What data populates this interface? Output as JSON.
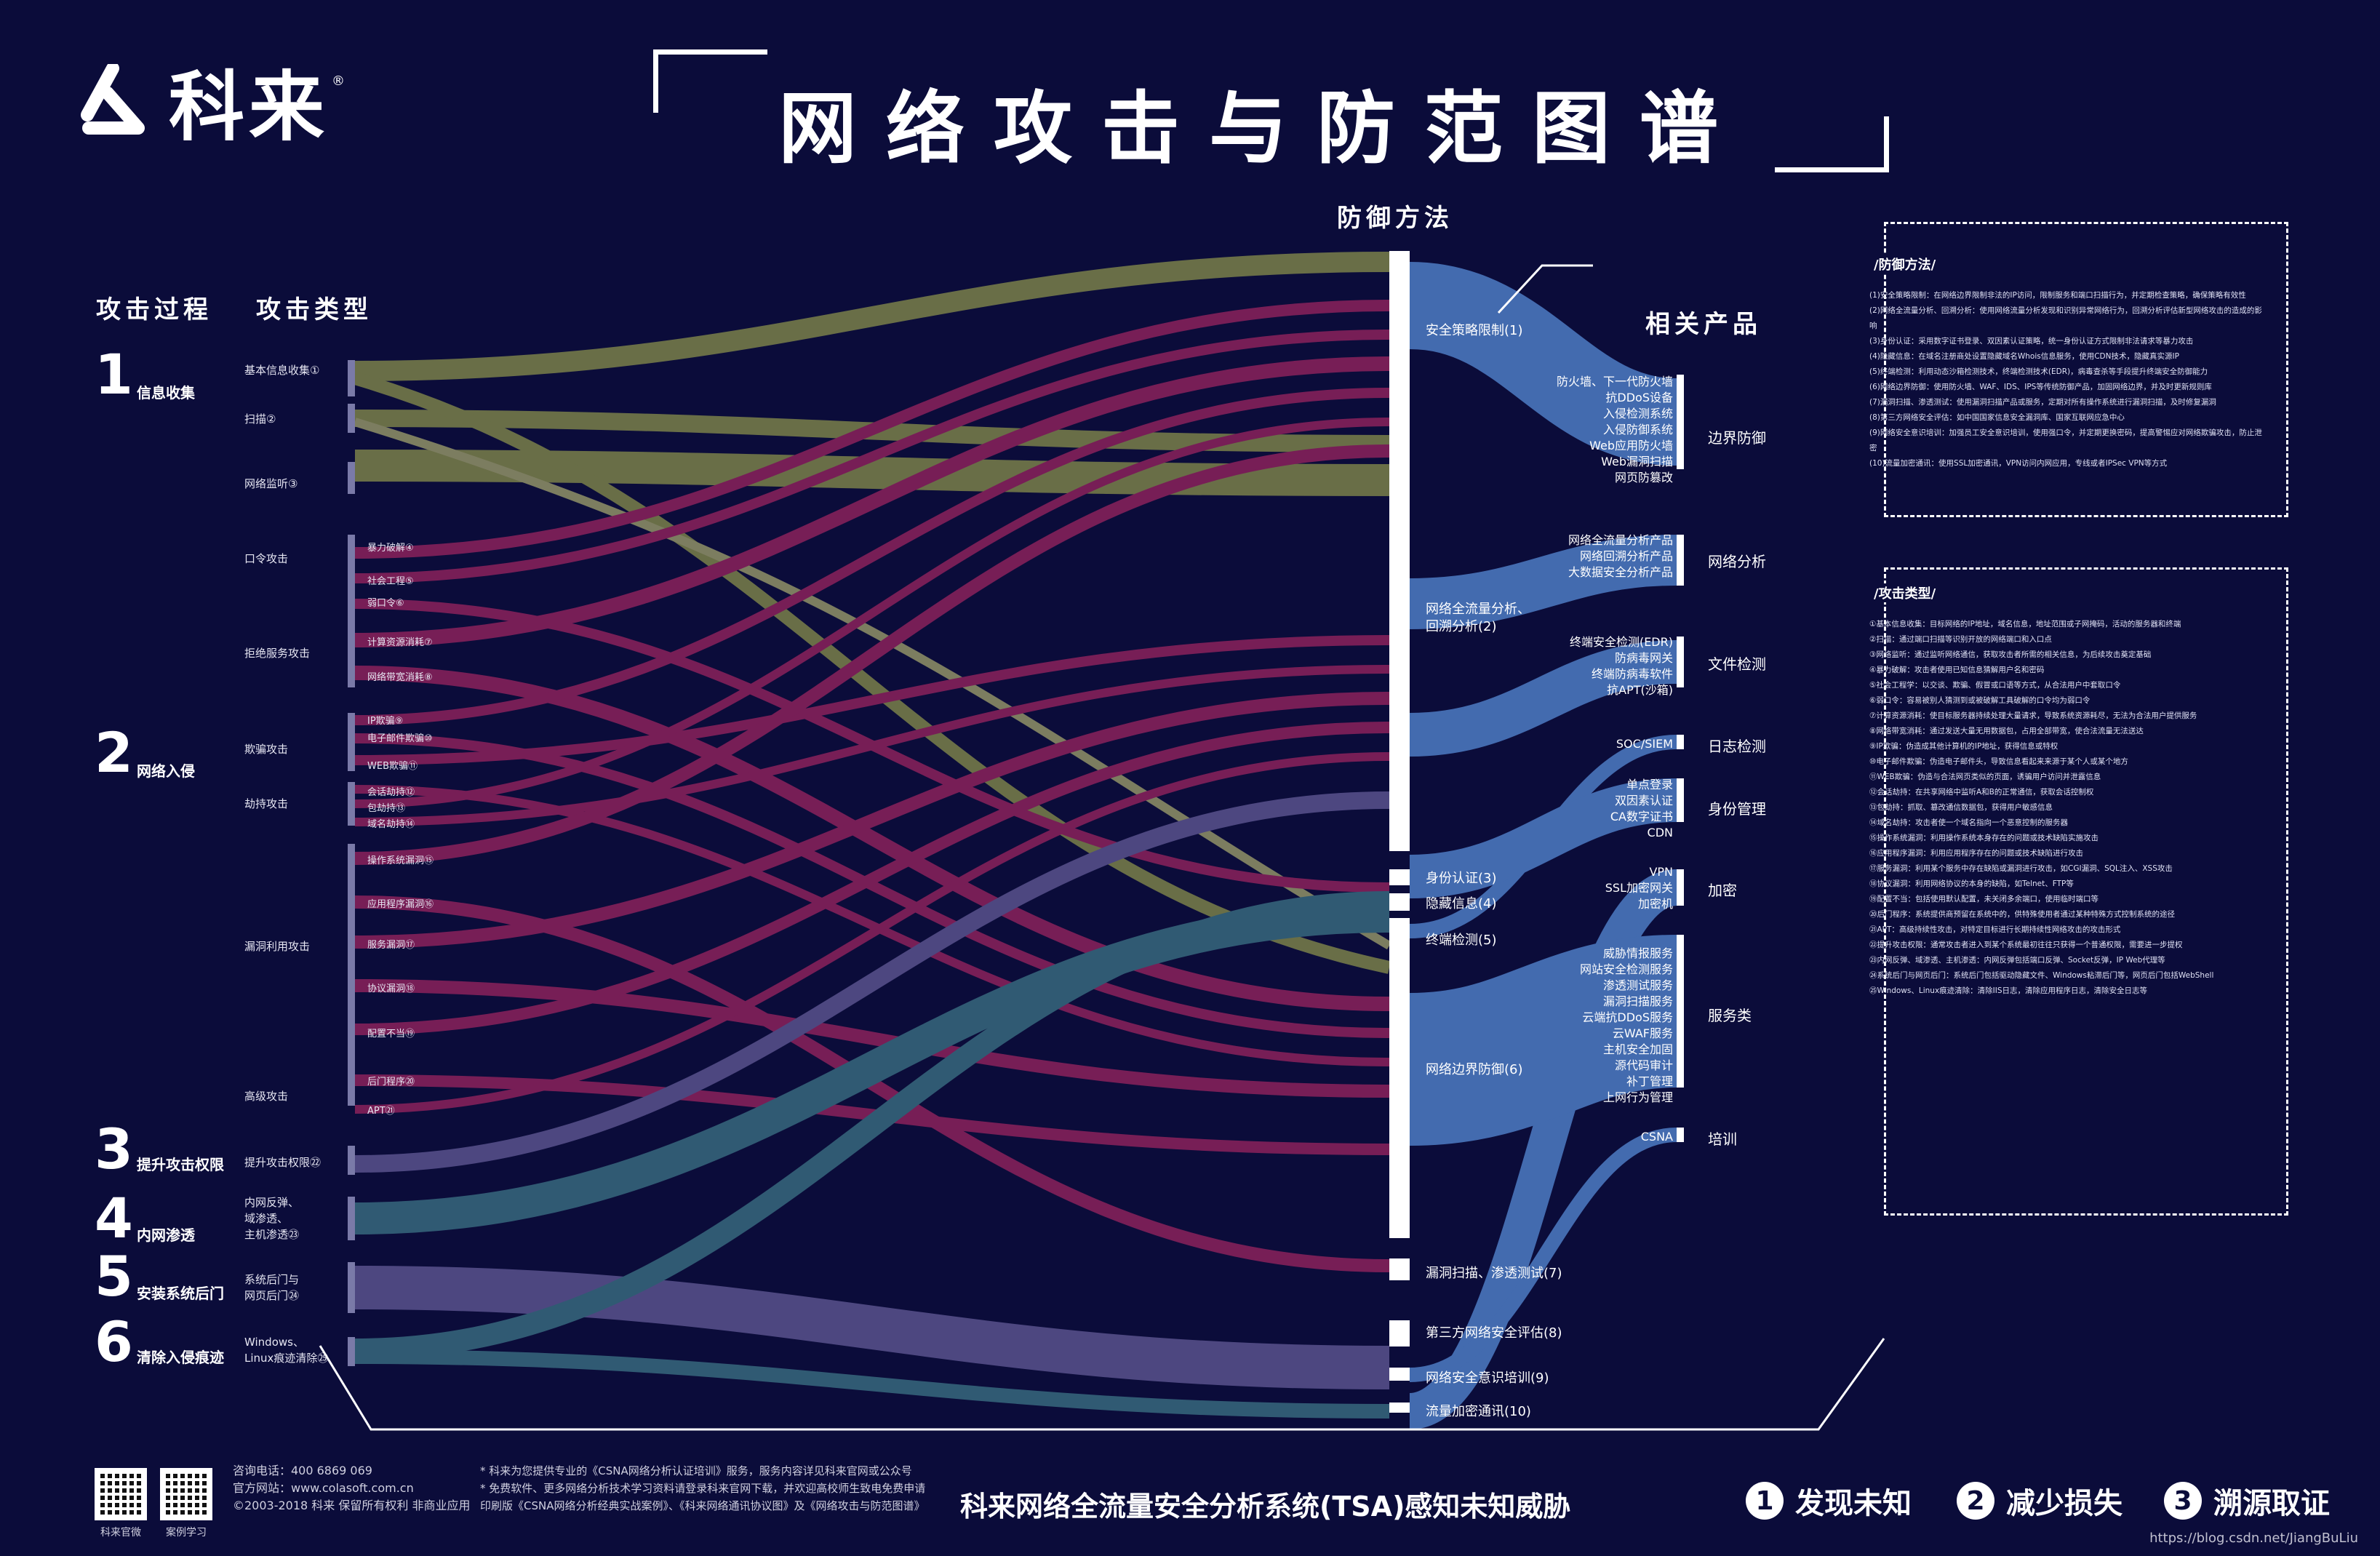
{
  "brand": {
    "name": "科来",
    "reg": "®"
  },
  "title": "网络攻击与防范图谱",
  "headers": {
    "process": "攻击过程",
    "types": "攻击类型",
    "defense": "防御方法",
    "products": "相关产品"
  },
  "stages": [
    {
      "num": "1",
      "name": "信息收集"
    },
    {
      "num": "2",
      "name": "网络入侵"
    },
    {
      "num": "3",
      "name": "提升攻击权限"
    },
    {
      "num": "4",
      "name": "内网渗透"
    },
    {
      "num": "5",
      "name": "安装系统后门"
    },
    {
      "num": "6",
      "name": "清除入侵痕迹"
    }
  ],
  "attack_types": [
    "基本信息收集①",
    "扫描②",
    "网络监听③",
    "口令攻击",
    "拒绝服务攻击",
    "欺骗攻击",
    "劫持攻击",
    "漏洞利用攻击",
    "高级攻击",
    "提升攻击权限㉒",
    "内网反弹、\n域渗透、\n主机渗透㉓",
    "系统后门与\n网页后门㉔",
    "Windows、\nLinux痕迹清除㉕"
  ],
  "sub_types": [
    "暴力破解④",
    "社会工程⑤",
    "弱口令⑥",
    "计算资源消耗⑦",
    "网络带宽消耗⑧",
    "IP欺骗⑨",
    "电子邮件欺骗⑩",
    "WEB欺骗⑪",
    "会话劫持⑫",
    "包劫持⑬",
    "域名劫持⑭",
    "操作系统漏洞⑮",
    "应用程序漏洞⑯",
    "服务漏洞⑰",
    "协议漏洞⑱",
    "配置不当⑲",
    "后门程序⑳",
    "APT㉑"
  ],
  "defenses": [
    "安全策略限制(1)",
    "网络全流量分析、\n回溯分析(2)",
    "身份认证(3)",
    "隐藏信息(4)",
    "终端检测(5)",
    "网络边界防御(6)",
    "漏洞扫描、渗透测试(7)",
    "第三方网络安全评估(8)",
    "网络安全意识培训(9)",
    "流量加密通讯(10)"
  ],
  "product_groups": [
    {
      "items": "防火墙、下一代防火墙\n抗DDoS设备\n入侵检测系统\n入侵防御系统\nWeb应用防火墙\nWeb漏洞扫描\n网页防篡改",
      "category": "边界防御"
    },
    {
      "items": "网络全流量分析产品\n网络回溯分析产品\n大数据安全分析产品",
      "category": "网络分析"
    },
    {
      "items": "终端安全检测(EDR)\n防病毒网关\n终端防病毒软件\n抗APT(沙箱)",
      "category": "文件检测"
    },
    {
      "items": "SOC/SIEM",
      "category": "日志检测"
    },
    {
      "items": "单点登录\n双因素认证\nCA数字证书\nCDN",
      "category": "身份管理"
    },
    {
      "items": "VPN\nSSL加密网关\n加密机",
      "category": "加密"
    },
    {
      "items": "威胁情报服务\n网站安全检测服务\n渗透测试服务\n漏洞扫描服务\n云端抗DDoS服务\n云WAF服务\n主机安全加固\n源代码审计\n补丁管理\n上网行为管理",
      "category": "服务类"
    },
    {
      "items": "CSNA",
      "category": "培训"
    }
  ],
  "defense_box": {
    "title": "/防御方法/",
    "lines": [
      "(1)安全策略限制：在网络边界限制非法的IP访问，限制服务和端口扫描行为，并定期检查策略，确保策略有效性",
      "(2)网络全流量分析、回溯分析：使用网络流量分析发现和识别异常网络行为，回溯分析评估新型网络攻击的造成的影响",
      "(3)身份认证：采用数字证书登录、双因素认证策略，统一身份认证方式限制非法请求等暴力攻击",
      "(4)隐藏信息：在域名注册商处设置隐藏域名Whois信息服务，使用CDN技术，隐藏真实源IP",
      "(5)终端检测：利用动态沙箱检测技术，终端检测技术(EDR)，病毒查杀等手段提升终端安全防御能力",
      "(6)网络边界防御：使用防火墙、WAF、IDS、IPS等传统防御产品，加固网络边界，并及时更新规则库",
      "(7)漏洞扫描、渗透测试：使用漏洞扫描产品或服务，定期对所有操作系统进行漏洞扫描，及时修复漏洞",
      "(8)第三方网络安全评估：如中国国家信息安全漏洞库、国家互联网应急中心",
      "(9)网络安全意识培训：加强员工安全意识培训，使用强口令，并定期更换密码，提高警惕应对网络欺骗攻击，防止泄密",
      "(10)流量加密通讯：使用SSL加密通讯，VPN访问内网应用，专线或者IPSec VPN等方式"
    ]
  },
  "attack_box": {
    "title": "/攻击类型/",
    "lines": [
      "①基本信息收集：目标网络的IP地址，域名信息，地址范围或子网掩码，活动的服务器和终端",
      "②扫描：通过端口扫描等识别开放的网络端口和入口点",
      "③网络监听：通过监听网络通信，获取攻击者所需的相关信息，为后续攻击奠定基础",
      "④暴力破解：攻击者使用已知信息猜解用户名和密码",
      "⑤社会工程学：以交谈、欺骗、假冒或口语等方式，从合法用户中套取口令",
      "⑥弱口令：容易被别人猜测到或被破解工具破解的口令均为弱口令",
      "⑦计算资源消耗：使目标服务器持续处理大量请求，导致系统资源耗尽，无法为合法用户提供服务",
      "⑧网络带宽消耗：通过发送大量无用数据包，占用全部带宽，使合法流量无法送达",
      "⑨IP欺骗：伪造成其他计算机的IP地址，获得信息或特权",
      "⑩电子邮件欺骗：伪造电子邮件头，导致信息看起来来源于某个人或某个地方",
      "⑪WEB欺骗：伪造与合法网页类似的页面，诱骗用户访问并泄露信息",
      "⑫会话劫持：在共享网络中监听A和B的正常通信，获取会话控制权",
      "⑬包劫持：抓取、篡改通信数据包，获得用户敏感信息",
      "⑭域名劫持：攻击者使一个域名指向一个恶意控制的服务器",
      "⑮操作系统漏洞：利用操作系统本身存在的问题或技术缺陷实施攻击",
      "⑯应用程序漏洞：利用应用程序存在的问题或技术缺陷进行攻击",
      "⑰服务漏洞：利用某个服务中存在缺陷或漏洞进行攻击，如CGI漏洞、SQL注入、XSS攻击",
      "⑱协议漏洞：利用网络协议的本身的缺陷，如Telnet、FTP等",
      "⑲配置不当：包括使用默认配置，未关闭多余端口，使用临时端口等",
      "⑳后门程序：系统提供商预留在系统中的，供特殊使用者通过某种特殊方式控制系统的途径",
      "㉑APT：高级持续性攻击，对特定目标进行长期持续性网络攻击的攻击形式",
      "㉒提升攻击权限：通常攻击者进入到某个系统最初往往只获得一个普通权限，需要进一步提权",
      "㉓内网反弹、域渗透、主机渗透：内网反弹包括端口反弹、Socket反弹，IP Web代理等",
      "㉔系统后门与网页后门：系统后门包括驱动隐藏文件、Windows粘滞后门等，网页后门包括WebShell",
      "㉕Windows、Linux痕迹清除：清除IIS日志，清除应用程序日志，清除安全日志等"
    ]
  },
  "footer": {
    "phone": "咨询电话：400 6869 069",
    "site": "官方网站：www.colasoft.com.cn",
    "copyright": "©2003-2018 科来 保留所有权利 非商业应用",
    "qr1": "科来官微",
    "qr2": "案例学习",
    "note1": "* 科来为您提供专业的《CSNA网络分析认证培训》服务，服务内容详见科来官网或公众号",
    "note2": "* 免费软件、更多网络分析技术学习资料请登录科来官网下载，并欢迎高校师生致电免费申请印刷版《CSNA网络分析经典实战案例》、《科来网络通讯协议图》及《网络攻击与防范图谱》",
    "slogan": "科来网络全流量安全分析系统(TSA)感知未知威胁",
    "goals": [
      {
        "n": "1",
        "text": "发现未知"
      },
      {
        "n": "2",
        "text": "减少损失"
      },
      {
        "n": "3",
        "text": "溯源取证"
      }
    ],
    "credit": "https://blog.csdn.net/JiangBuLiu"
  },
  "colors": {
    "background": "#0b0c3a",
    "magenta": "#c02a6a",
    "olive": "#a8b050",
    "teal": "#4a8f9a",
    "blue": "#4d7cc4",
    "lilac": "#7a6fb0"
  }
}
